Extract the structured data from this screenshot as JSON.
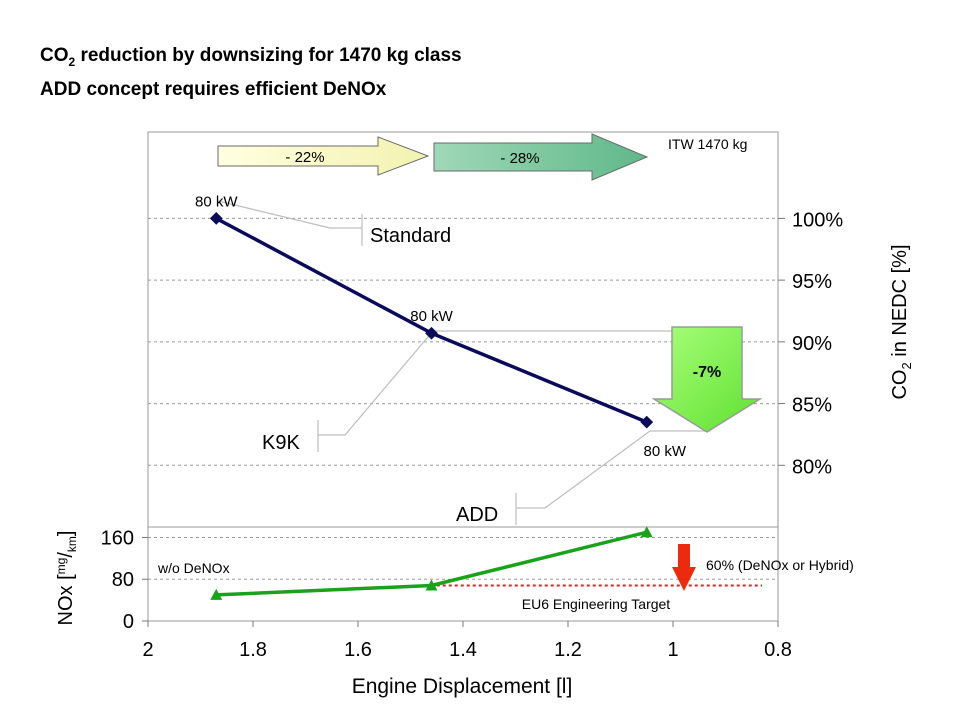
{
  "title": {
    "line1_pre": "CO",
    "line1_sub": "2",
    "line1_post": " reduction by downsizing for 1470 kg class",
    "line2": "ADD concept requires efficient DeNOx"
  },
  "chart_data": [
    {
      "type": "line",
      "name": "co2",
      "corner_label": "ITW 1470 kg",
      "y_axis_label_pre": "CO",
      "y_axis_label_sub": "2",
      "y_axis_label_post": " in NEDC [%]",
      "y_axis_side": "right",
      "ylim": [
        75,
        107
      ],
      "yticks": [
        80,
        85,
        90,
        95,
        100
      ],
      "ytick_labels": [
        "80%",
        "85%",
        "90%",
        "95%",
        "100%"
      ],
      "grid": true,
      "series": [
        {
          "color": "#0a0a5c",
          "points": [
            {
              "x": 1.87,
              "y": 100,
              "label": "80 kW",
              "callout": "Standard"
            },
            {
              "x": 1.46,
              "y": 90.7,
              "label": "80 kW",
              "callout": "K9K"
            },
            {
              "x": 1.05,
              "y": 83.5,
              "label": "80 kW",
              "callout": "ADD"
            }
          ]
        }
      ],
      "arrows": [
        {
          "label": "- 22%",
          "color": "#ffffcc"
        },
        {
          "label": "- 28%",
          "color": "#7fc8a0"
        },
        {
          "label": "-7%",
          "color": "#7ff24a"
        }
      ]
    },
    {
      "type": "line",
      "name": "nox",
      "y_axis_label_pre": "NOx [",
      "y_axis_label_num": "mg",
      "y_axis_label_sep": "/",
      "y_axis_label_den": "km",
      "y_axis_label_post": "]",
      "y_axis_side": "left",
      "ylim": [
        0,
        180
      ],
      "yticks": [
        0,
        80,
        160
      ],
      "ytick_labels": [
        "0",
        "80",
        "160"
      ],
      "series": [
        {
          "color": "#1aa31a",
          "points": [
            {
              "x": 1.87,
              "y": 50
            },
            {
              "x": 1.46,
              "y": 68
            },
            {
              "x": 1.05,
              "y": 170
            }
          ]
        }
      ],
      "target_line": {
        "y": 68,
        "x_from": 1.45,
        "x_to": 0.8,
        "label": "EU6 Engineering Target",
        "color": "#e02020"
      },
      "annotation_left": "w/o DeNOx",
      "annotation_right": "60% (DeNOx or Hybrid)",
      "reduction_arrow_color": "#ee2a0e"
    }
  ],
  "x_axis": {
    "label": "Engine Displacement [l]",
    "xlim": [
      2,
      0.8
    ],
    "ticks": [
      2,
      1.8,
      1.6,
      1.4,
      1.2,
      1,
      0.8
    ],
    "tick_labels": [
      "2",
      "1.8",
      "1.6",
      "1.4",
      "1.2",
      "1",
      "0.8"
    ]
  }
}
